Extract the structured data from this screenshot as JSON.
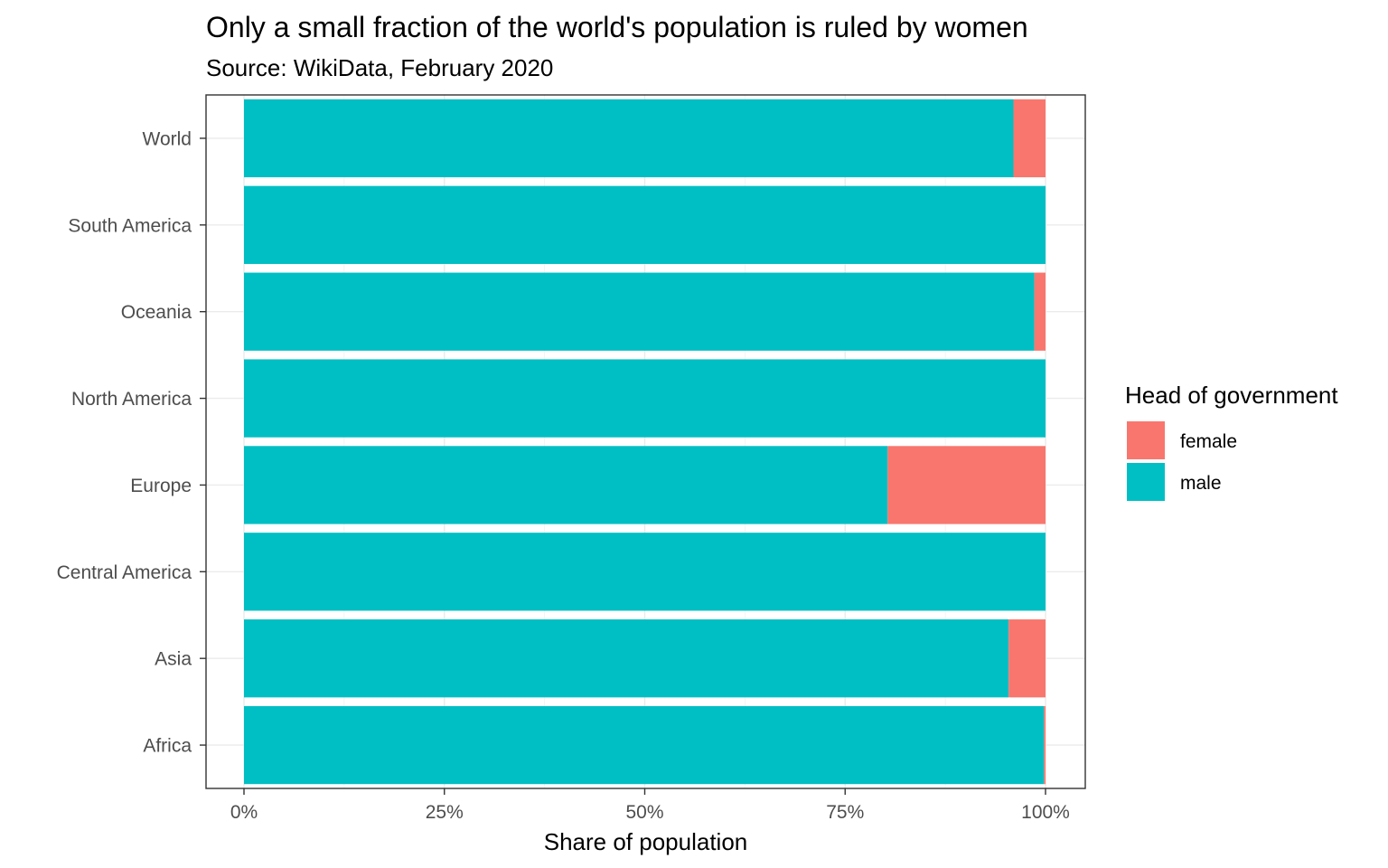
{
  "chart_data": {
    "type": "bar",
    "orientation": "horizontal",
    "stacked": true,
    "title": "Only a small fraction of the world's population is ruled by women",
    "subtitle": "Source: WikiData, February 2020",
    "xlabel": "Share of population",
    "ylabel": "",
    "xlim": [
      0,
      1
    ],
    "x_ticks": [
      0,
      0.25,
      0.5,
      0.75,
      1
    ],
    "x_tick_labels": [
      "0%",
      "25%",
      "50%",
      "75%",
      "100%"
    ],
    "categories": [
      "World",
      "South America",
      "Oceania",
      "North America",
      "Europe",
      "Central America",
      "Asia",
      "Africa"
    ],
    "series": [
      {
        "name": "male",
        "color": "#00BFC4",
        "values": [
          0.96,
          1.0,
          0.986,
          1.0,
          0.803,
          1.0,
          0.954,
          0.998
        ]
      },
      {
        "name": "female",
        "color": "#F8766D",
        "values": [
          0.04,
          0.0,
          0.014,
          0.0,
          0.197,
          0.0,
          0.046,
          0.002
        ]
      }
    ],
    "legend": {
      "title": "Head of government",
      "position": "right",
      "items": [
        {
          "label": "female",
          "color": "#F8766D"
        },
        {
          "label": "male",
          "color": "#00BFC4"
        }
      ]
    },
    "grid": true,
    "theme": "bw"
  }
}
